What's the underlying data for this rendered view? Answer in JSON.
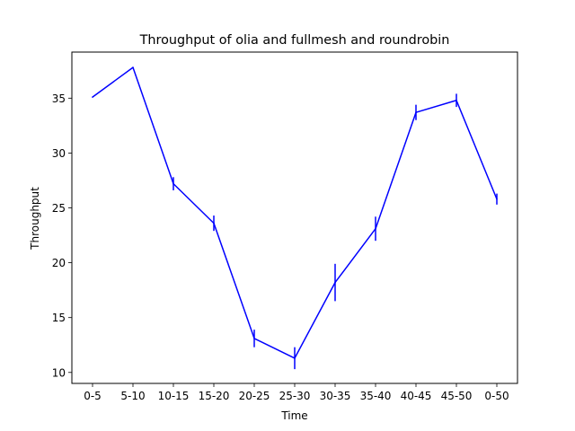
{
  "chart_data": {
    "type": "line",
    "title": "Throughput of olia and fullmesh and roundrobin",
    "xlabel": "Time",
    "ylabel": "Throughput",
    "categories": [
      "0-5",
      "5-10",
      "10-15",
      "15-20",
      "20-25",
      "25-30",
      "30-35",
      "35-40",
      "40-45",
      "45-50",
      "0-50"
    ],
    "series": [
      {
        "color": "#0000ff",
        "values": [
          35.1,
          37.8,
          27.2,
          23.6,
          13.1,
          11.3,
          18.2,
          23.1,
          33.7,
          34.8,
          25.8
        ],
        "error": [
          0.0,
          0.0,
          0.6,
          0.7,
          0.8,
          1.0,
          1.7,
          1.1,
          0.7,
          0.6,
          0.5
        ]
      }
    ],
    "ylim": [
      9.0,
      39.2
    ],
    "yticks": [
      10,
      15,
      20,
      25,
      30,
      35
    ],
    "grid": false,
    "legend": "none"
  }
}
